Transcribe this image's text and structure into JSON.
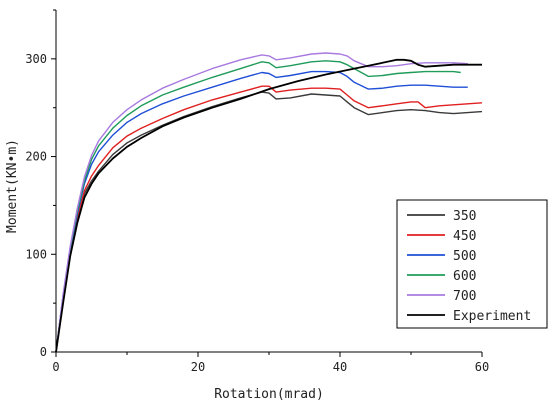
{
  "chart_data": {
    "type": "line",
    "xlabel": "Rotation(mrad)",
    "ylabel": "Moment(KN•m)",
    "xlim": [
      0,
      60
    ],
    "ylim": [
      0,
      350
    ],
    "xticks": [
      0,
      20,
      40,
      60
    ],
    "yticks": [
      0,
      100,
      200,
      300
    ],
    "grid": false,
    "legend_position": "right",
    "series": [
      {
        "name": "350",
        "color": "#3a3a3a",
        "x": [
          0,
          1,
          2,
          3,
          4,
          5,
          6,
          8,
          10,
          12,
          15,
          18,
          22,
          26,
          29,
          30,
          31,
          33,
          36,
          38,
          40,
          41,
          42,
          44,
          46,
          48,
          50,
          52,
          54,
          56,
          58,
          60
        ],
        "y": [
          0,
          55,
          100,
          135,
          162,
          175,
          185,
          202,
          214,
          222,
          232,
          241,
          251,
          260,
          266,
          265,
          259,
          260,
          264,
          263,
          262,
          256,
          250,
          243,
          245,
          247,
          248,
          247,
          245,
          244,
          245,
          246
        ]
      },
      {
        "name": "450",
        "color": "#e02020",
        "x": [
          0,
          1,
          2,
          3,
          4,
          5,
          6,
          8,
          10,
          12,
          15,
          18,
          22,
          26,
          29,
          30,
          31,
          33,
          36,
          38,
          40,
          41,
          42,
          44,
          46,
          48,
          50,
          51,
          52,
          54,
          56,
          58,
          60
        ],
        "y": [
          0,
          56,
          102,
          137,
          165,
          180,
          191,
          209,
          221,
          229,
          239,
          248,
          258,
          266,
          272,
          272,
          266,
          268,
          270,
          270,
          269,
          263,
          257,
          250,
          252,
          254,
          256,
          256,
          250,
          252,
          253,
          254,
          255
        ]
      },
      {
        "name": "500",
        "color": "#1f4fd6",
        "x": [
          0,
          1,
          2,
          3,
          4,
          5,
          6,
          8,
          10,
          12,
          15,
          18,
          22,
          26,
          29,
          30,
          31,
          33,
          36,
          38,
          40,
          41,
          42,
          44,
          46,
          48,
          50,
          52,
          54,
          56,
          58
        ],
        "y": [
          0,
          57,
          104,
          141,
          172,
          192,
          205,
          222,
          235,
          244,
          254,
          262,
          271,
          280,
          286,
          285,
          281,
          283,
          287,
          287,
          286,
          282,
          276,
          269,
          270,
          272,
          273,
          273,
          272,
          271,
          271
        ]
      },
      {
        "name": "600",
        "color": "#1f9b5a",
        "x": [
          0,
          1,
          2,
          3,
          4,
          5,
          6,
          8,
          10,
          12,
          15,
          18,
          22,
          26,
          29,
          30,
          31,
          33,
          36,
          38,
          40,
          41,
          42,
          44,
          46,
          48,
          50,
          52,
          54,
          56,
          57
        ],
        "y": [
          0,
          58,
          106,
          144,
          175,
          197,
          211,
          229,
          242,
          252,
          263,
          271,
          281,
          290,
          297,
          296,
          291,
          293,
          297,
          298,
          297,
          294,
          290,
          282,
          283,
          285,
          286,
          287,
          287,
          287,
          286
        ]
      },
      {
        "name": "700",
        "color": "#a87ae0",
        "x": [
          0,
          1,
          2,
          3,
          4,
          5,
          6,
          8,
          10,
          12,
          15,
          18,
          22,
          26,
          29,
          30,
          31,
          33,
          36,
          38,
          40,
          41,
          42,
          44,
          46,
          48,
          50,
          52,
          54,
          56,
          58
        ],
        "y": [
          0,
          59,
          108,
          147,
          179,
          201,
          216,
          235,
          248,
          258,
          270,
          279,
          290,
          299,
          304,
          303,
          299,
          301,
          305,
          306,
          305,
          303,
          298,
          292,
          292,
          293,
          295,
          296,
          296,
          296,
          295
        ]
      },
      {
        "name": "Experiment",
        "color": "#000000",
        "x": [
          0,
          1,
          2,
          3,
          4,
          5,
          6,
          8,
          10,
          12,
          15,
          18,
          22,
          26,
          30,
          34,
          38,
          42,
          44,
          46,
          48,
          49,
          50,
          51,
          52,
          54,
          56,
          58,
          60
        ],
        "y": [
          0,
          50,
          98,
          132,
          158,
          172,
          183,
          198,
          210,
          219,
          231,
          240,
          250,
          259,
          269,
          277,
          284,
          290,
          293,
          296,
          299,
          299,
          298,
          294,
          292,
          293,
          294,
          294,
          294
        ]
      }
    ]
  }
}
